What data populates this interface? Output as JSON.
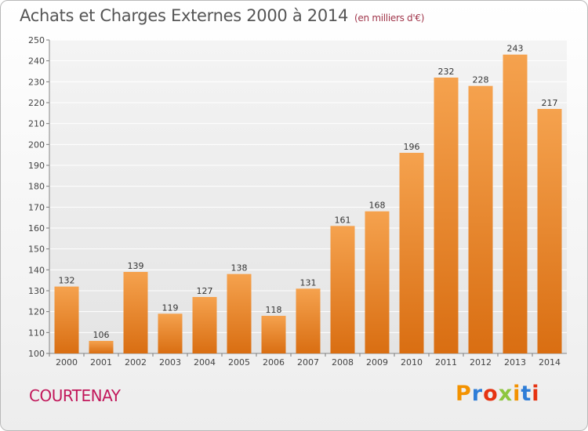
{
  "title": "Achats et Charges Externes 2000 à 2014",
  "unit": "(en milliers d'€)",
  "town": "COURTENAY",
  "brand": {
    "letters": [
      "P",
      "r",
      "o",
      "x",
      "i",
      "t",
      "i"
    ],
    "colors": [
      "#f39200",
      "#2e7dd7",
      "#e63312",
      "#8dc63f",
      "#f39200",
      "#2e7dd7",
      "#e63312"
    ]
  },
  "chart_data": {
    "type": "bar",
    "categories": [
      "2000",
      "2001",
      "2002",
      "2003",
      "2004",
      "2005",
      "2006",
      "2007",
      "2008",
      "2009",
      "2010",
      "2011",
      "2012",
      "2013",
      "2014"
    ],
    "values": [
      132,
      106,
      139,
      119,
      127,
      138,
      118,
      131,
      161,
      168,
      196,
      232,
      228,
      243,
      217
    ],
    "ylim": [
      100,
      250
    ],
    "yticks": [
      100,
      110,
      120,
      130,
      140,
      150,
      160,
      170,
      180,
      190,
      200,
      210,
      220,
      230,
      240,
      250
    ],
    "grid": true,
    "bar_color": "#f0882d"
  }
}
